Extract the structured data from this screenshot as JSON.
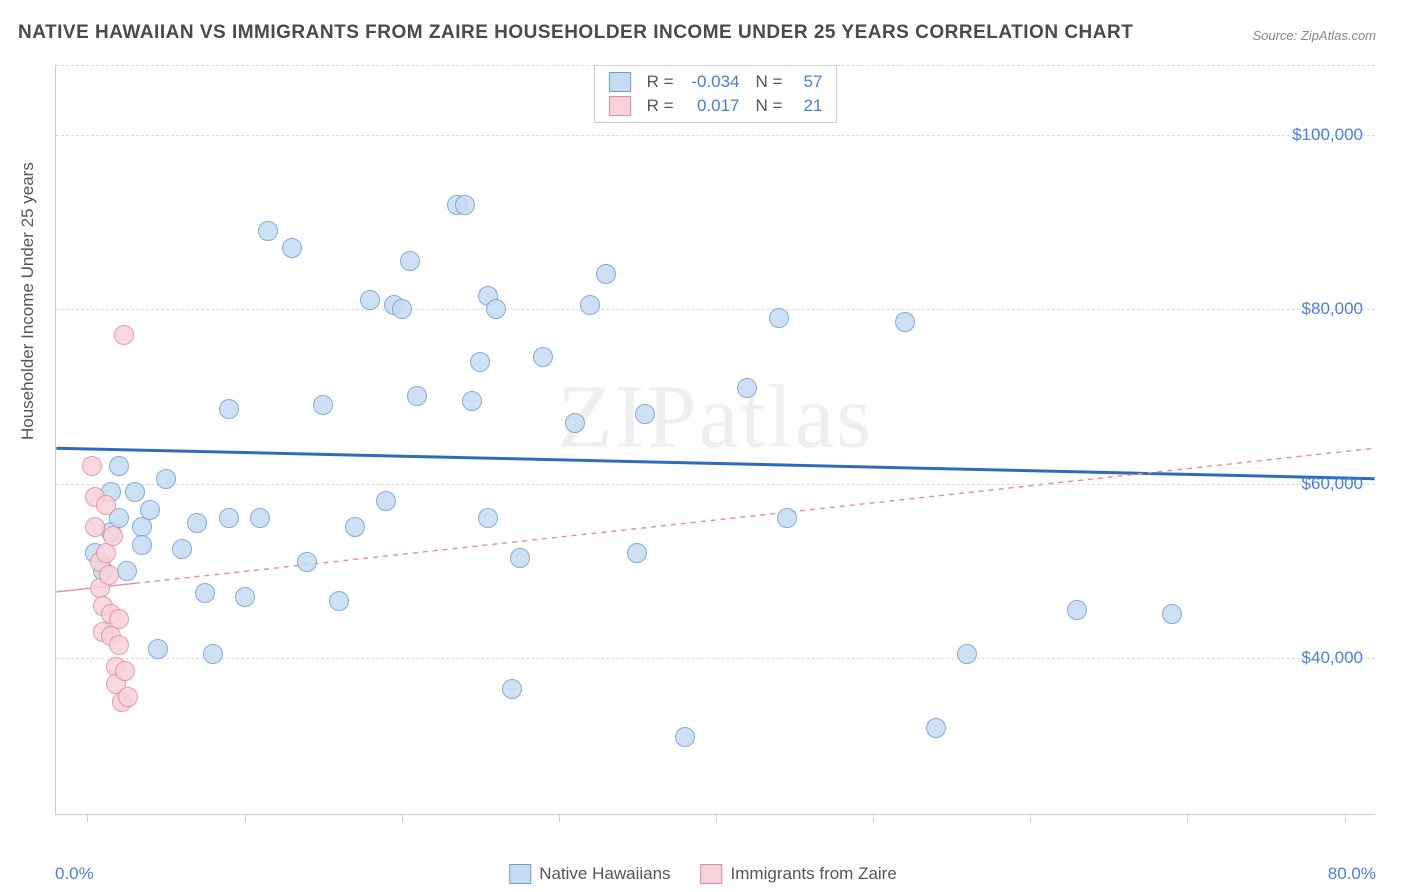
{
  "title": "NATIVE HAWAIIAN VS IMMIGRANTS FROM ZAIRE HOUSEHOLDER INCOME UNDER 25 YEARS CORRELATION CHART",
  "source": "Source: ZipAtlas.com",
  "watermark": "ZIPatlas",
  "y_axis_label": "Householder Income Under 25 years",
  "chart": {
    "type": "scatter",
    "background_color": "#ffffff",
    "grid_color": "#dcdcdc",
    "x_range": [
      -2,
      82
    ],
    "y_range": [
      22000,
      108000
    ],
    "y_ticks": [
      40000,
      60000,
      80000,
      100000
    ],
    "y_tick_labels": [
      "$40,000",
      "$60,000",
      "$80,000",
      "$100,000"
    ],
    "x_tick_positions": [
      0,
      10,
      20,
      30,
      40,
      50,
      60,
      70,
      80
    ],
    "x_min_label": "0.0%",
    "x_max_label": "80.0%",
    "marker_radius": 10,
    "marker_border_width": 1.5
  },
  "series": [
    {
      "name": "Native Hawaiians",
      "fill": "#c6dcf3",
      "stroke": "#6d9ed8",
      "r_value": "-0.034",
      "n_value": "57",
      "trend": {
        "y_start": 64000,
        "y_end": 60500,
        "stroke": "#2d6bbf",
        "width": 3,
        "dash": "none",
        "x_solid_end": 82
      },
      "points": [
        [
          0.5,
          52000
        ],
        [
          1,
          50000
        ],
        [
          1.5,
          59000
        ],
        [
          1.5,
          54500
        ],
        [
          2,
          62000
        ],
        [
          2,
          56000
        ],
        [
          2.5,
          50000
        ],
        [
          3,
          59000
        ],
        [
          3.5,
          55000
        ],
        [
          3.5,
          53000
        ],
        [
          4,
          57000
        ],
        [
          4.5,
          41000
        ],
        [
          5,
          60500
        ],
        [
          6,
          52500
        ],
        [
          7,
          55500
        ],
        [
          7.5,
          47500
        ],
        [
          8,
          40500
        ],
        [
          9,
          56000
        ],
        [
          9,
          68500
        ],
        [
          10,
          47000
        ],
        [
          11,
          56000
        ],
        [
          11.5,
          89000
        ],
        [
          13,
          87000
        ],
        [
          14,
          51000
        ],
        [
          15,
          69000
        ],
        [
          16,
          46500
        ],
        [
          17,
          55000
        ],
        [
          18,
          81000
        ],
        [
          19,
          58000
        ],
        [
          19.5,
          80500
        ],
        [
          20,
          80000
        ],
        [
          20.5,
          85500
        ],
        [
          21,
          70000
        ],
        [
          23.5,
          92000
        ],
        [
          24,
          92000
        ],
        [
          24.5,
          69500
        ],
        [
          25,
          74000
        ],
        [
          25.5,
          56000
        ],
        [
          25.5,
          81500
        ],
        [
          26,
          80000
        ],
        [
          27,
          36500
        ],
        [
          27.5,
          51500
        ],
        [
          29,
          74500
        ],
        [
          31,
          67000
        ],
        [
          32,
          80500
        ],
        [
          33,
          84000
        ],
        [
          35,
          52000
        ],
        [
          35.5,
          68000
        ],
        [
          38,
          31000
        ],
        [
          42,
          71000
        ],
        [
          44,
          79000
        ],
        [
          44.5,
          56000
        ],
        [
          52,
          78500
        ],
        [
          54,
          32000
        ],
        [
          56,
          40500
        ],
        [
          63,
          45500
        ],
        [
          69,
          45000
        ]
      ]
    },
    {
      "name": "Immigrants from Zaire",
      "fill": "#f8d2da",
      "stroke": "#e38ba0",
      "r_value": "0.017",
      "n_value": "21",
      "trend": {
        "y_start": 47500,
        "y_end": 64000,
        "stroke": "#e38ba0",
        "width": 1.4,
        "dash": "5,5",
        "x_solid_end": 3
      },
      "points": [
        [
          0.3,
          62000
        ],
        [
          0.5,
          58500
        ],
        [
          0.5,
          55000
        ],
        [
          0.8,
          51000
        ],
        [
          0.8,
          48000
        ],
        [
          1,
          46000
        ],
        [
          1,
          43000
        ],
        [
          1.2,
          57500
        ],
        [
          1.2,
          52000
        ],
        [
          1.4,
          49500
        ],
        [
          1.5,
          45000
        ],
        [
          1.5,
          42500
        ],
        [
          1.6,
          54000
        ],
        [
          1.8,
          39000
        ],
        [
          1.8,
          37000
        ],
        [
          2,
          44500
        ],
        [
          2,
          41500
        ],
        [
          2.2,
          35000
        ],
        [
          2.3,
          77000
        ],
        [
          2.4,
          38500
        ],
        [
          2.6,
          35500
        ]
      ]
    }
  ],
  "legend_bottom": [
    {
      "label": "Native Hawaiians",
      "fill": "#c6dcf3",
      "stroke": "#6d9ed8"
    },
    {
      "label": "Immigrants from Zaire",
      "fill": "#f8d2da",
      "stroke": "#e38ba0"
    }
  ]
}
